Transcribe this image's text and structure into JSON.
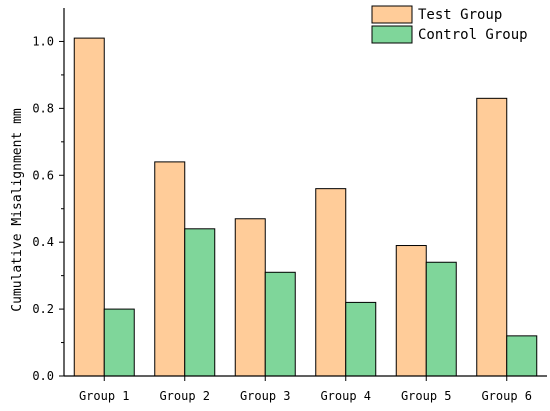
{
  "chart_data": {
    "type": "bar",
    "title": "",
    "xlabel": "",
    "ylabel": "Cumulative Misalignment mm",
    "categories": [
      "Group 1",
      "Group 2",
      "Group 3",
      "Group 4",
      "Group 5",
      "Group 6"
    ],
    "series": [
      {
        "name": "Test Group",
        "color": "#FFCC99",
        "values": [
          1.01,
          0.64,
          0.47,
          0.56,
          0.39,
          0.83
        ]
      },
      {
        "name": "Control Group",
        "color": "#7FD69A",
        "values": [
          0.2,
          0.44,
          0.31,
          0.22,
          0.34,
          0.12
        ]
      }
    ],
    "ylim": [
      0,
      1.1
    ],
    "yticks": [
      "0.0",
      "0.2",
      "0.4",
      "0.6",
      "0.8",
      "1.0"
    ],
    "ytick_values": [
      0,
      0.2,
      0.4,
      0.6,
      0.8,
      1.0
    ],
    "grid": false,
    "legend_position": "top-right"
  }
}
